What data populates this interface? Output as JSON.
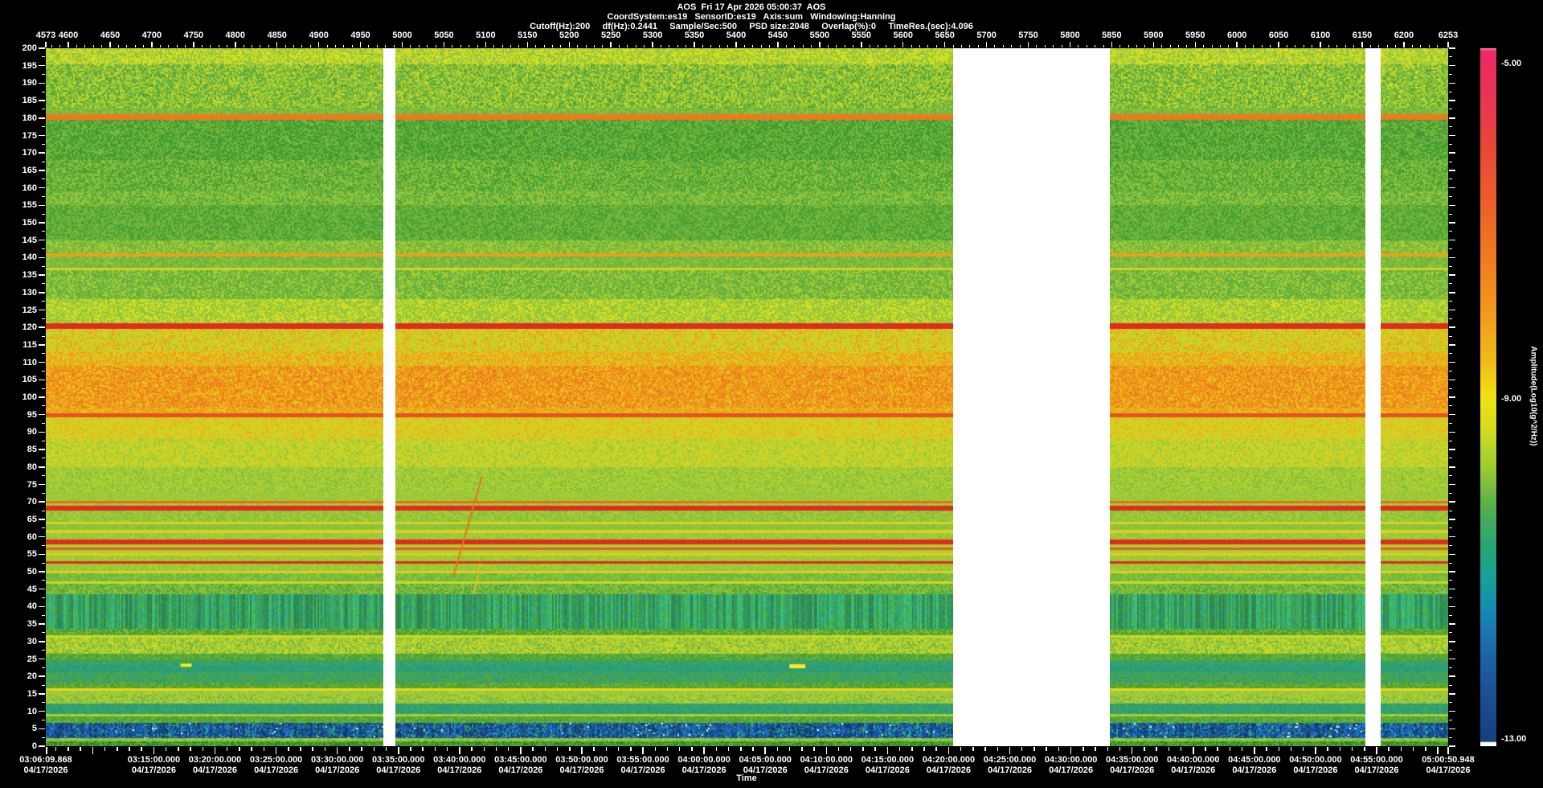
{
  "header": {
    "line1": "AOS  Fri 17 Apr 2026 05:00:37  AOS",
    "line2": "CoordSystem:es19   SensorID:es19   Axis:sum   Windowing:Hanning",
    "line3": "Cutoff(Hz):200     df(Hz):0.2441     Sample/Sec:500     PSD size:2048     Overlap(%):0     TimeRes.(sec):4.096"
  },
  "chart_data": {
    "type": "heatmap",
    "title": "AOS spectrogram",
    "x_axis_top": {
      "start": 4573,
      "end": 6253,
      "minor_tick_step": 10,
      "ticks": [
        4573,
        4600,
        4650,
        4700,
        4750,
        4800,
        4850,
        4900,
        4950,
        5000,
        5050,
        5100,
        5150,
        5200,
        5250,
        5300,
        5350,
        5400,
        5450,
        5500,
        5550,
        5600,
        5650,
        5700,
        5750,
        5800,
        5850,
        5900,
        5950,
        6000,
        6050,
        6100,
        6150,
        6200,
        6253
      ]
    },
    "y_axis": {
      "min": 0,
      "max": 200,
      "major_tick_step": 5,
      "minor_tick_step": 2.5,
      "unit": "Hz"
    },
    "time_axis": {
      "label": "Time",
      "start": "03:06:09.868",
      "end": "05:00:50.948",
      "labels": [
        {
          "time": "03:06:09.868",
          "date": "04/17/2026"
        },
        {
          "time": "03:15:00.000",
          "date": "04/17/2026"
        },
        {
          "time": "03:20:00.000",
          "date": "04/17/2026"
        },
        {
          "time": "03:25:00.000",
          "date": "04/17/2026"
        },
        {
          "time": "03:30:00.000",
          "date": "04/17/2026"
        },
        {
          "time": "03:35:00.000",
          "date": "04/17/2026"
        },
        {
          "time": "03:40:00.000",
          "date": "04/17/2026"
        },
        {
          "time": "03:45:00.000",
          "date": "04/17/2026"
        },
        {
          "time": "03:50:00.000",
          "date": "04/17/2026"
        },
        {
          "time": "03:55:00.000",
          "date": "04/17/2026"
        },
        {
          "time": "04:00:00.000",
          "date": "04/17/2026"
        },
        {
          "time": "04:05:00.000",
          "date": "04/17/2026"
        },
        {
          "time": "04:10:00.000",
          "date": "04/17/2026"
        },
        {
          "time": "04:15:00.000",
          "date": "04/17/2026"
        },
        {
          "time": "04:20:00.000",
          "date": "04/17/2026"
        },
        {
          "time": "04:25:00.000",
          "date": "04/17/2026"
        },
        {
          "time": "04:30:00.000",
          "date": "04/17/2026"
        },
        {
          "time": "04:35:00.000",
          "date": "04/17/2026"
        },
        {
          "time": "04:40:00.000",
          "date": "04/17/2026"
        },
        {
          "time": "04:45:00.000",
          "date": "04/17/2026"
        },
        {
          "time": "04:50:00.000",
          "date": "04/17/2026"
        },
        {
          "time": "04:55:00.000",
          "date": "04/17/2026"
        },
        {
          "time": "05:00:50.948",
          "date": "04/17/2026"
        }
      ]
    },
    "colorbar": {
      "label": "Amplitude(Log10(g^2/Hz))",
      "max": -5.0,
      "mid": -9.0,
      "min": -13.0,
      "tick_labels": [
        "-5.00",
        "-9.00",
        "-13.00"
      ],
      "gradient": [
        [
          0.0,
          "#ff85bb"
        ],
        [
          0.004,
          "#ee2766"
        ],
        [
          0.06,
          "#e73355"
        ],
        [
          0.14,
          "#e74637"
        ],
        [
          0.22,
          "#ec5e2a"
        ],
        [
          0.3,
          "#f07b22"
        ],
        [
          0.38,
          "#f29a1c"
        ],
        [
          0.45,
          "#f2bb19"
        ],
        [
          0.5,
          "#efe214"
        ],
        [
          0.545,
          "#d4dc1e"
        ],
        [
          0.6,
          "#9fcb31"
        ],
        [
          0.655,
          "#58b04a"
        ],
        [
          0.71,
          "#2aa472"
        ],
        [
          0.76,
          "#17a099"
        ],
        [
          0.81,
          "#1787b5"
        ],
        [
          0.865,
          "#1d66a8"
        ],
        [
          0.92,
          "#1d5096"
        ],
        [
          0.993,
          "#16407e"
        ],
        [
          0.995,
          "#ffffff"
        ],
        [
          1.0,
          "#ffffff"
        ]
      ]
    },
    "gaps": [
      {
        "x0": 0.2407,
        "x1": 0.2493
      },
      {
        "x0": 0.647,
        "x1": 0.7588
      },
      {
        "x0": 0.941,
        "x1": 0.9519
      }
    ],
    "bands": [
      [
        200,
        195.5,
        [
          "#d7df23",
          "#c6d829",
          "#a8ce35",
          "#8cc63f",
          "#d7df23",
          "#94c43a"
        ],
        0
      ],
      [
        195.5,
        183,
        [
          "#7ab93c",
          "#a8ce35",
          "#6ab33e",
          "#c6d829",
          "#55a636",
          "#94c43a"
        ],
        0
      ],
      [
        183,
        181.0,
        [
          "#6ab33e",
          "#7ab93c",
          "#94c43a"
        ],
        0
      ],
      [
        181.0,
        179.6,
        [
          "#ef7a1e"
        ],
        0
      ],
      [
        179.6,
        168,
        [
          "#55a636",
          "#48a02f",
          "#6ab33e",
          "#7ab93c",
          "#3f9733"
        ],
        0
      ],
      [
        168,
        159,
        [
          "#55a636",
          "#6ab33e",
          "#7ab93c",
          "#48a02f",
          "#94c43a"
        ],
        0
      ],
      [
        159,
        155,
        [
          "#6ab33e",
          "#8cc63f",
          "#55a636",
          "#94c43a"
        ],
        0
      ],
      [
        155,
        145,
        [
          "#55a636",
          "#6ab33e",
          "#7ab93c",
          "#48a02f"
        ],
        0
      ],
      [
        145,
        141.3,
        [
          "#7ab93c",
          "#94c43a",
          "#6ab33e",
          "#a8ce35"
        ],
        0
      ],
      [
        141.3,
        140.3,
        [
          "#e8a21d"
        ],
        0
      ],
      [
        140.3,
        137.1,
        [
          "#7ab93c",
          "#94c43a",
          "#6ab33e"
        ],
        0
      ],
      [
        137.1,
        136.4,
        [
          "#cfd227"
        ],
        0
      ],
      [
        136.4,
        128,
        [
          "#76b73d",
          "#94c43a",
          "#5fae3a",
          "#a8ce35",
          "#6ab33e"
        ],
        0
      ],
      [
        128,
        121.1,
        [
          "#a8ce35",
          "#c6d829",
          "#8cc63f",
          "#94c43a",
          "#d7df23"
        ],
        0
      ],
      [
        121.1,
        119.7,
        [
          "#e02b20"
        ],
        0
      ],
      [
        119.7,
        113,
        [
          "#d8cd22",
          "#e8a21d",
          "#c6d829",
          "#e8c11c",
          "#b4d130"
        ],
        0
      ],
      [
        113,
        109,
        [
          "#eda31a",
          "#e8b11c",
          "#ddc81f",
          "#f09a1b",
          "#d8cd22"
        ],
        0
      ],
      [
        109,
        97,
        [
          "#f08a1c",
          "#ef9a1a",
          "#ea7d1e",
          "#f0a51a",
          "#e8c11c"
        ],
        0
      ],
      [
        97,
        95.3,
        [
          "#eda31a",
          "#ddc81f",
          "#f09a1b"
        ],
        0
      ],
      [
        95.3,
        94.3,
        [
          "#e5531f"
        ],
        0
      ],
      [
        94.3,
        88,
        [
          "#ddc81f",
          "#cfd227",
          "#e8b11c",
          "#c6d829",
          "#d8cd22"
        ],
        0
      ],
      [
        88,
        80,
        [
          "#b4d130",
          "#c6d829",
          "#9cc83a",
          "#d8cd22",
          "#cfd227"
        ],
        0
      ],
      [
        80,
        73,
        [
          "#9cc83a",
          "#b4d130",
          "#86bf3b",
          "#a8ce35"
        ],
        0
      ],
      [
        73,
        70.3,
        [
          "#a8ce35",
          "#94c43a",
          "#9cc83a"
        ],
        0
      ],
      [
        70.3,
        69.6,
        [
          "#e5701e"
        ],
        0
      ],
      [
        69.6,
        68.8,
        [
          "#a8ce35",
          "#94c43a"
        ],
        0
      ],
      [
        68.8,
        67.5,
        [
          "#e02b20"
        ],
        0
      ],
      [
        67.5,
        64.3,
        [
          "#94c43a",
          "#a8ce35",
          "#86bf3b"
        ],
        0
      ],
      [
        64.3,
        63.5,
        [
          "#d8d023"
        ],
        0
      ],
      [
        63.5,
        61.9,
        [
          "#94c43a",
          "#86bf3b"
        ],
        0
      ],
      [
        61.9,
        61.1,
        [
          "#d8d023"
        ],
        0
      ],
      [
        61.1,
        59.3,
        [
          "#94c43a",
          "#a8ce35"
        ],
        0
      ],
      [
        59.3,
        57.9,
        [
          "#e02b20"
        ],
        0
      ],
      [
        57.9,
        56.9,
        [
          "#a8ce35"
        ],
        0
      ],
      [
        56.9,
        56.2,
        [
          "#e5601e"
        ],
        0
      ],
      [
        56.2,
        55.3,
        [
          "#a8ce35",
          "#b0d032"
        ],
        0
      ],
      [
        55.3,
        54.6,
        [
          "#d8d023"
        ],
        0
      ],
      [
        54.6,
        53.1,
        [
          "#94c43a",
          "#a8ce35"
        ],
        0
      ],
      [
        53.1,
        52.2,
        [
          "#e02b20"
        ],
        0
      ],
      [
        52.2,
        50.3,
        [
          "#94c43a",
          "#a8ce35"
        ],
        0
      ],
      [
        50.3,
        49.5,
        [
          "#d8d023"
        ],
        0
      ],
      [
        49.5,
        47.3,
        [
          "#7ab93c",
          "#94c43a",
          "#6ab33e"
        ],
        0
      ],
      [
        47.3,
        46.5,
        [
          "#c8d827"
        ],
        0
      ],
      [
        46.5,
        43.6,
        [
          "#6ab33e",
          "#7ab93c",
          "#55a636",
          "#8cc63f"
        ],
        0
      ],
      [
        43.6,
        33.7,
        [
          "#2d9e68",
          "#35a377",
          "#2a9973",
          "#3fa95e",
          "#48a02f"
        ],
        1
      ],
      [
        33.7,
        31.9,
        [
          "#55a636",
          "#79b93c",
          "#48a02f"
        ],
        0
      ],
      [
        31.9,
        31.0,
        [
          "#c8d827"
        ],
        0
      ],
      [
        31.0,
        26.6,
        [
          "#9cc83a",
          "#b4d130",
          "#7ab93c",
          "#c6d829"
        ],
        0
      ],
      [
        26.6,
        24.7,
        [
          "#55a636",
          "#6ab33e",
          "#48a02f"
        ],
        0
      ],
      [
        24.7,
        23.3,
        [
          "#35a377",
          "#2d9e68",
          "#45a35c"
        ],
        0
      ],
      [
        23.3,
        21.3,
        [
          "#259a80",
          "#2d9e68",
          "#35a377"
        ],
        0
      ],
      [
        21.3,
        18.2,
        [
          "#35a377",
          "#45a35c",
          "#2d9e68",
          "#55a636"
        ],
        0
      ],
      [
        18.2,
        16.7,
        [
          "#55a636",
          "#48a02f",
          "#6ab33e"
        ],
        0
      ],
      [
        16.7,
        15.8,
        [
          "#e8d41c"
        ],
        0
      ],
      [
        15.8,
        14.7,
        [
          "#a8ce35",
          "#94c43a"
        ],
        0
      ],
      [
        14.7,
        12.2,
        [
          "#8cc63f",
          "#b0d032",
          "#79b93c",
          "#a6ce39"
        ],
        0
      ],
      [
        12.2,
        9.3,
        [
          "#2d9e68",
          "#35a377",
          "#259a80",
          "#45a35c"
        ],
        0
      ],
      [
        9.3,
        8.5,
        [
          "#9cc83a",
          "#b4d130"
        ],
        0
      ],
      [
        8.5,
        6.7,
        [
          "#55a636",
          "#48a02f",
          "#6ab33e"
        ],
        0
      ],
      [
        6.7,
        2.3,
        [
          "#1c5fa8",
          "#17498c",
          "#2272b8",
          "#123c7a",
          "#2d9e68",
          "#1c5fa8",
          "#17498c"
        ],
        1,
        "#cfe9ff"
      ],
      [
        2.3,
        1.4,
        [
          "#a8ce35",
          "#94c43a",
          "#79b93c"
        ],
        0
      ],
      [
        1.4,
        0,
        [
          "#3c8f2e",
          "#55a636",
          "#2a7a2a",
          "#48a02f"
        ],
        0
      ]
    ],
    "features": [
      {
        "kind": "dash",
        "xf": 0.1,
        "f": 23.2,
        "w": 14,
        "h": 4,
        "color": "#ffe81a"
      },
      {
        "kind": "dash",
        "xf": 0.536,
        "f": 22.9,
        "w": 20,
        "h": 5,
        "color": "#ffe81a"
      },
      {
        "kind": "diag",
        "x0f": 0.3112,
        "f0": 77.5,
        "x1f": 0.2905,
        "f1": 48.5,
        "color": "#e07820"
      },
      {
        "kind": "diag",
        "x0f": 0.3098,
        "f0": 52.5,
        "x1f": 0.3052,
        "f1": 43.5,
        "color": "#d8c020"
      }
    ]
  }
}
